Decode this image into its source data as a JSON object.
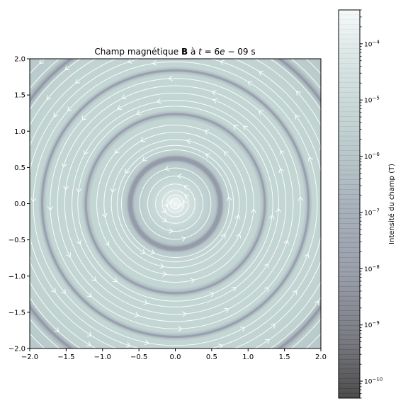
{
  "chart_data": {
    "type": "heatmap",
    "title_parts": {
      "prefix": "Champ magnétique ",
      "bold": "B",
      "mid": " à ",
      "var": "t",
      "eq": " = 6",
      "exp": "e",
      "suffix": " − 09 s"
    },
    "xlabel": "",
    "ylabel": "",
    "xlim": [
      -2.0,
      2.0
    ],
    "ylim": [
      -2.0,
      2.0
    ],
    "x_ticks": [
      "−2.0",
      "−1.5",
      "−1.0",
      "−0.5",
      "0.0",
      "0.5",
      "1.0",
      "1.5",
      "2.0"
    ],
    "y_ticks": [
      "2.0",
      "1.5",
      "1.0",
      "0.5",
      "0.0",
      "−0.5",
      "−1.0",
      "−1.5",
      "−2.0"
    ],
    "x_tick_values": [
      -2.0,
      -1.5,
      -1.0,
      -0.5,
      0.0,
      0.5,
      1.0,
      1.5,
      2.0
    ],
    "y_tick_values": [
      2.0,
      1.5,
      1.0,
      0.5,
      0.0,
      -0.5,
      -1.0,
      -1.5,
      -2.0
    ],
    "field": "circular magnetic field around origin (streamlines, counter-clockwise)",
    "dark_ring_radii": [
      0.62,
      1.23,
      1.83,
      2.45
    ],
    "streamline_radii": [
      0.07,
      0.12,
      0.18,
      0.27,
      0.38,
      0.49,
      0.74,
      0.8,
      0.88,
      0.98,
      1.08,
      1.34,
      1.42,
      1.52,
      1.62,
      1.72,
      1.95,
      2.05,
      2.15,
      2.27,
      2.38,
      2.55,
      2.68
    ],
    "colorbar": {
      "label": "Intensité du champ (T)",
      "scale": "log",
      "range": [
        5e-11,
        0.0004
      ],
      "tick_exponents": [
        -4,
        -5,
        -6,
        -7,
        -8,
        -9,
        -10
      ],
      "tick_base": "10"
    },
    "colors": {
      "field_high": "#f3f7f7",
      "field_mid": "#c3d6d4",
      "field_low": "#9aa1ae",
      "field_min": "#4a4a4a",
      "streamline": "#ffffff"
    }
  }
}
